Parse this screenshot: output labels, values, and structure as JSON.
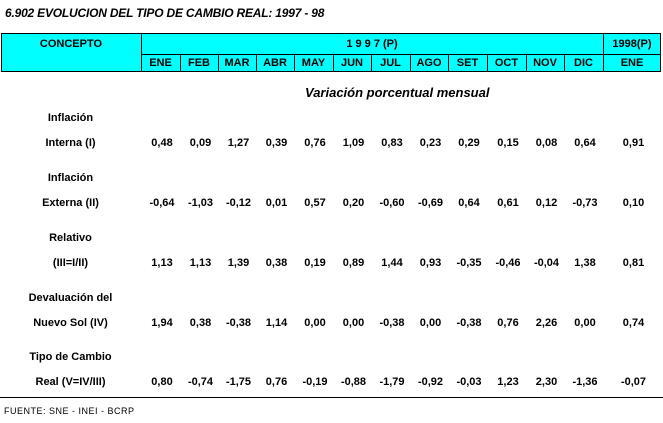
{
  "title": "6.902  EVOLUCION DEL TIPO DE CAMBIO REAL: 1997 - 98",
  "header": {
    "concepto": "CONCEPTO",
    "year1997": "1 9 9 7 (P)",
    "year1998": "1998(P)",
    "months": [
      "ENE",
      "FEB",
      "MAR",
      "ABR",
      "MAY",
      "JUN",
      "JUL",
      "AGO",
      "SET",
      "OCT",
      "NOV",
      "DIC",
      "ENE"
    ]
  },
  "subtitle": "Variación porcentual mensual",
  "rows": [
    {
      "label1": "Inflación",
      "label2": "Interna (I)",
      "values": [
        "0,48",
        "0,09",
        "1,27",
        "0,39",
        "0,76",
        "1,09",
        "0,83",
        "0,23",
        "0,29",
        "0,15",
        "0,08",
        "0,64",
        "0,91"
      ]
    },
    {
      "label1": "Inflación",
      "label2": "Externa (II)",
      "values": [
        "-0,64",
        "-1,03",
        "-0,12",
        "0,01",
        "0,57",
        "0,20",
        "-0,60",
        "-0,69",
        "0,64",
        "0,61",
        "0,12",
        "-0,73",
        "0,10"
      ]
    },
    {
      "label1": "Relativo",
      "label2": "(III=I/II)",
      "values": [
        "1,13",
        "1,13",
        "1,39",
        "0,38",
        "0,19",
        "0,89",
        "1,44",
        "0,93",
        "-0,35",
        "-0,46",
        "-0,04",
        "1,38",
        "0,81"
      ]
    },
    {
      "label1": "Devaluación del",
      "label2": "Nuevo Sol (IV)",
      "values": [
        "1,94",
        "0,38",
        "-0,38",
        "1,14",
        "0,00",
        "0,00",
        "-0,38",
        "0,00",
        "-0,38",
        "0,76",
        "2,26",
        "0,00",
        "0,74"
      ]
    },
    {
      "label1": "Tipo de Cambio",
      "label2": "Real (V=IV/III)",
      "values": [
        "0,80",
        "-0,74",
        "-1,75",
        "0,76",
        "-0,19",
        "-0,88",
        "-1,79",
        "-0,92",
        "-0,03",
        "1,23",
        "2,30",
        "-1,36",
        "-0,07"
      ]
    }
  ],
  "source": "FUENTE: SNE - INEI - BCRP",
  "colors": {
    "header_bg": "#00ffff"
  }
}
